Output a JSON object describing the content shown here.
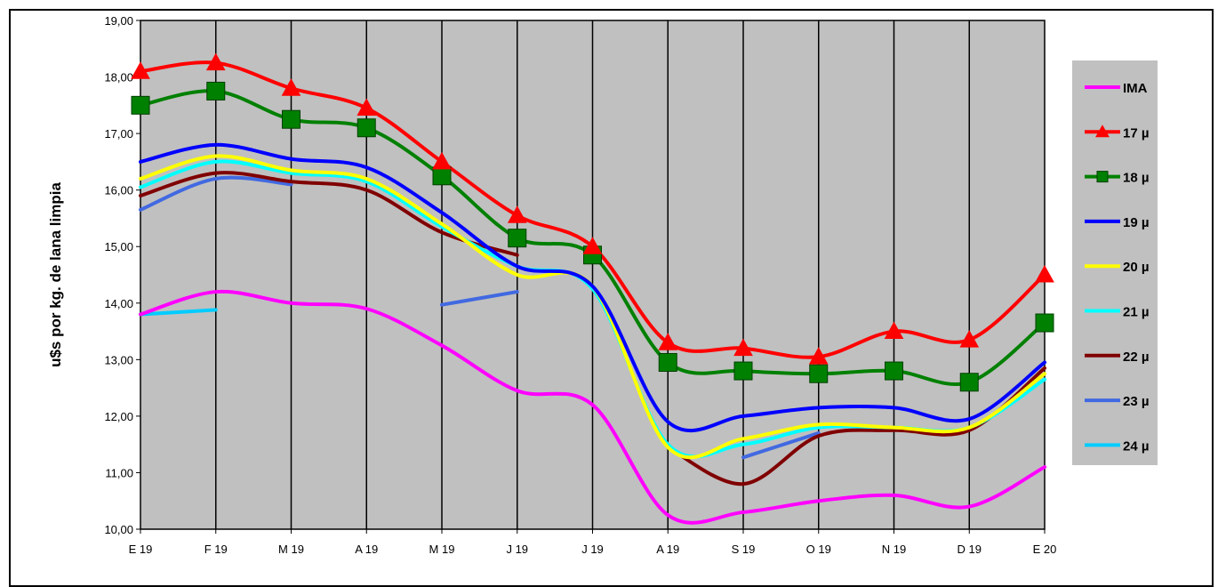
{
  "colors": {
    "plot_bg": "#c0c0c0",
    "legend_bg": "#c0c0c0",
    "gridline": "#000000"
  },
  "chart_data": {
    "type": "line",
    "title": "",
    "xlabel": "",
    "ylabel": "u$s por kg. de lana limpia",
    "ylim": [
      10,
      19
    ],
    "yticks": [
      "10,00",
      "11,00",
      "12,00",
      "13,00",
      "14,00",
      "15,00",
      "16,00",
      "17,00",
      "18,00",
      "19,00"
    ],
    "categories": [
      "E 19",
      "F 19",
      "M 19",
      "A 19",
      "M 19",
      "J 19",
      "J 19",
      "A 19",
      "S 19",
      "O 19",
      "N 19",
      "D 19",
      "E 20"
    ],
    "grid": "vertical",
    "legend_position": "right",
    "series": [
      {
        "name": "IMA",
        "color": "#ff00ff",
        "marker": "none",
        "values": [
          13.8,
          14.2,
          14.0,
          13.9,
          13.25,
          12.45,
          12.2,
          10.25,
          10.3,
          10.5,
          10.6,
          10.4,
          11.1
        ]
      },
      {
        "name": "17 µ",
        "color": "#ff0000",
        "marker": "triangle",
        "values": [
          18.1,
          18.25,
          17.8,
          17.45,
          16.5,
          15.55,
          15.0,
          13.3,
          13.2,
          13.05,
          13.5,
          13.35,
          14.5
        ]
      },
      {
        "name": "18 µ",
        "color": "#008000",
        "marker": "square",
        "values": [
          17.5,
          17.75,
          17.25,
          17.1,
          16.25,
          15.15,
          14.85,
          12.95,
          12.8,
          12.75,
          12.8,
          12.6,
          13.65
        ]
      },
      {
        "name": "19 µ",
        "color": "#0000ff",
        "marker": "none",
        "values": [
          16.5,
          16.8,
          16.55,
          16.4,
          15.6,
          14.65,
          14.3,
          11.9,
          12.0,
          12.15,
          12.15,
          11.95,
          12.95
        ]
      },
      {
        "name": "20 µ",
        "color": "#ffff00",
        "marker": "none",
        "values": [
          16.2,
          16.6,
          16.35,
          16.2,
          15.4,
          14.5,
          14.3,
          11.45,
          11.6,
          11.85,
          11.8,
          11.8,
          12.75
        ]
      },
      {
        "name": "21 µ",
        "color": "#00ffff",
        "marker": "none",
        "values": [
          16.05,
          16.5,
          16.3,
          16.15,
          15.35,
          14.65,
          14.25,
          11.5,
          11.5,
          11.8,
          11.8,
          11.8,
          12.65
        ]
      },
      {
        "name": "22 µ",
        "color": "#800000",
        "marker": "none",
        "values": [
          15.9,
          16.3,
          16.15,
          16.0,
          15.25,
          14.85,
          null,
          11.45,
          10.8,
          11.65,
          11.75,
          11.75,
          12.85
        ]
      },
      {
        "name": "23 µ",
        "color": "#4169e1",
        "marker": "none",
        "values": [
          15.65,
          16.2,
          16.1,
          null,
          13.97,
          14.2,
          null,
          null,
          11.27,
          11.7,
          null,
          null,
          null
        ]
      },
      {
        "name": "24 µ",
        "color": "#00ccff",
        "marker": "none",
        "values": [
          13.8,
          13.88,
          null,
          null,
          null,
          null,
          null,
          null,
          null,
          null,
          null,
          null,
          null
        ]
      }
    ]
  }
}
